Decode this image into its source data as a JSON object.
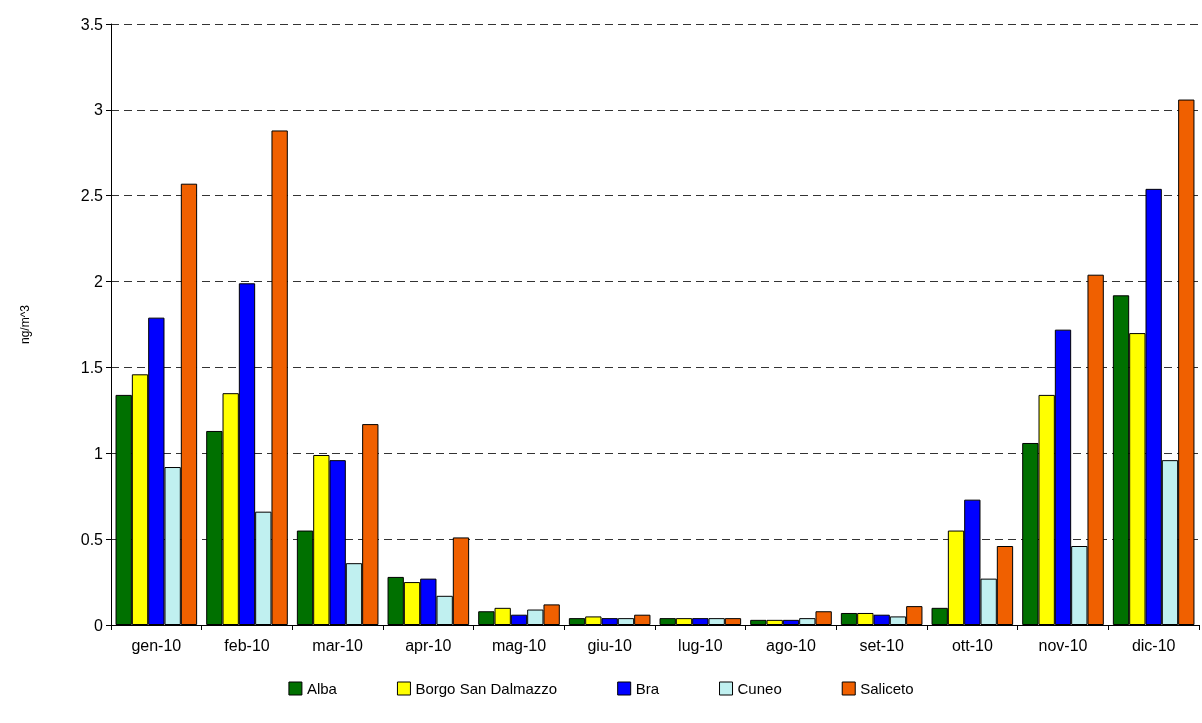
{
  "chart_data": {
    "type": "bar",
    "ylabel": "ng/m^3",
    "categories": [
      "gen-10",
      "feb-10",
      "mar-10",
      "apr-10",
      "mag-10",
      "giu-10",
      "lug-10",
      "ago-10",
      "set-10",
      "ott-10",
      "nov-10",
      "dic-10"
    ],
    "series": [
      {
        "name": "Alba",
        "color": "#007000",
        "values": [
          1.34,
          1.13,
          0.55,
          0.28,
          0.08,
          0.04,
          0.04,
          0.03,
          0.07,
          0.1,
          1.06,
          1.92
        ]
      },
      {
        "name": "Borgo San Dalmazzo",
        "color": "#ffff00",
        "values": [
          1.46,
          1.35,
          0.99,
          0.25,
          0.1,
          0.05,
          0.04,
          0.03,
          0.07,
          0.55,
          1.34,
          1.7
        ]
      },
      {
        "name": "Bra",
        "color": "#0000ff",
        "values": [
          1.79,
          1.99,
          0.96,
          0.27,
          0.06,
          0.04,
          0.04,
          0.03,
          0.06,
          0.73,
          1.72,
          2.54
        ]
      },
      {
        "name": "Cuneo",
        "color": "#c0f0f0",
        "values": [
          0.92,
          0.66,
          0.36,
          0.17,
          0.09,
          0.04,
          0.04,
          0.04,
          0.05,
          0.27,
          0.46,
          0.96
        ]
      },
      {
        "name": "Saliceto",
        "color": "#f06000",
        "values": [
          2.57,
          2.88,
          1.17,
          0.51,
          0.12,
          0.06,
          0.04,
          0.08,
          0.11,
          0.46,
          2.04,
          3.06
        ]
      }
    ],
    "ylim": [
      0,
      3.5
    ],
    "yticks": [
      0,
      0.5,
      1,
      1.5,
      2,
      2.5,
      3,
      3.5
    ],
    "grid": "y",
    "legend": "bottom"
  }
}
